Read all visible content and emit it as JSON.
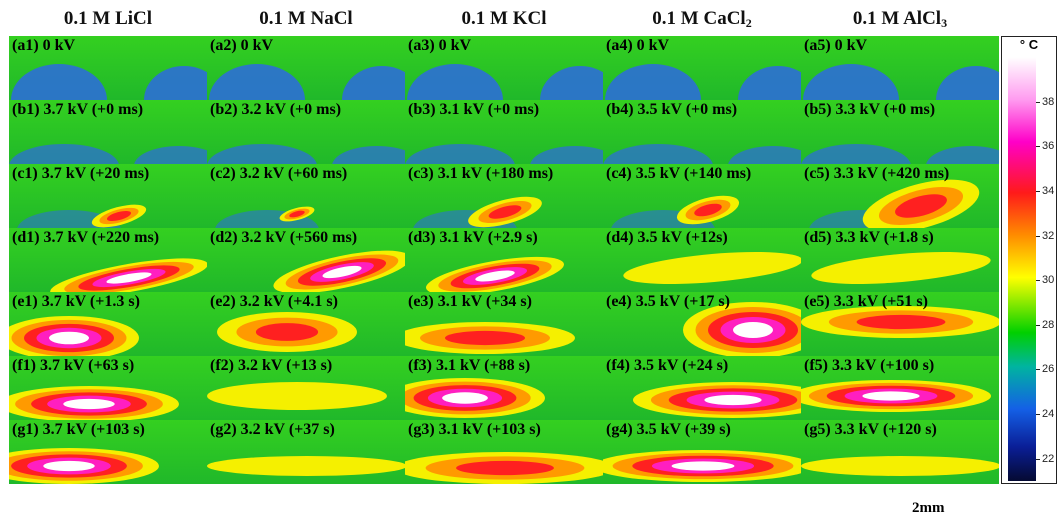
{
  "columns": [
    {
      "label_prefix": "0.1 M ",
      "label_main": "LiCl",
      "label_sub": ""
    },
    {
      "label_prefix": "0.1 M ",
      "label_main": "NaCl",
      "label_sub": ""
    },
    {
      "label_prefix": "0.1 M ",
      "label_main": "KCl",
      "label_sub": ""
    },
    {
      "label_prefix": "0.1 M ",
      "label_main": "CaCl",
      "label_sub": "2"
    },
    {
      "label_prefix": "0.1 M ",
      "label_main": "AlCl",
      "label_sub": "3"
    }
  ],
  "panels": [
    [
      "(a1) 0 kV",
      "(a2) 0 kV",
      "(a3) 0 kV",
      "(a4) 0 kV",
      "(a5) 0 kV"
    ],
    [
      "(b1) 3.7 kV (+0 ms)",
      "(b2) 3.2 kV (+0 ms)",
      "(b3) 3.1 kV (+0 ms)",
      "(b4) 3.5 kV (+0 ms)",
      "(b5) 3.3 kV (+0 ms)"
    ],
    [
      "(c1) 3.7 kV (+20 ms)",
      "(c2) 3.2 kV (+60 ms)",
      "(c3) 3.1 kV (+180 ms)",
      "(c4) 3.5 kV (+140 ms)",
      "(c5) 3.3 kV (+420 ms)"
    ],
    [
      "(d1) 3.7 kV (+220 ms)",
      "(d2) 3.2 kV (+560 ms)",
      "(d3) 3.1 kV (+2.9 s)",
      "(d4) 3.5 kV (+12s)",
      "(d5) 3.3 kV (+1.8 s)"
    ],
    [
      "(e1) 3.7 kV (+1.3 s)",
      "(e2) 3.2 kV (+4.1 s)",
      "(e3) 3.1 kV (+34 s)",
      "(e4) 3.5 kV (+17 s)",
      "(e5) 3.3 kV (+51 s)"
    ],
    [
      "(f1) 3.7 kV (+63 s)",
      "(f2) 3.2 kV (+13 s)",
      "(f3) 3.1 kV (+88 s)",
      "(f4) 3.5 kV (+24 s)",
      "(f5) 3.3 kV (+100 s)"
    ],
    [
      "(g1) 3.7 kV (+103 s)",
      "(g2) 3.2 kV (+37 s)",
      "(g3) 3.1 kV (+103 s)",
      "(g4) 3.5 kV (+39 s)",
      "(g5) 3.3 kV (+120 s)"
    ]
  ],
  "colorbar": {
    "unit": "° C",
    "ticks": [
      "38",
      "36",
      "34",
      "32",
      "30",
      "28",
      "26",
      "24",
      "22"
    ],
    "range": [
      21,
      40
    ]
  },
  "scale_bar": {
    "label": "2mm"
  },
  "colors": {
    "background_green": "#2ac81e",
    "droplet_blue": "#2c6fd6",
    "hot_white": "#ffffff",
    "hot_magenta": "#ff1fc0",
    "hot_red": "#ff2020",
    "warm_orange": "#ff9a00",
    "warm_yellow": "#f5f000"
  }
}
